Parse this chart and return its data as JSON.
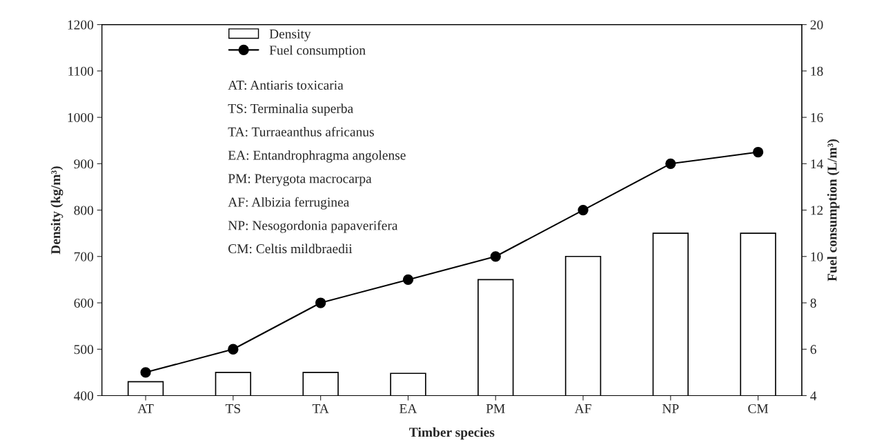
{
  "chart_data": {
    "type": "bar",
    "xlabel": "Timber species",
    "ylabel": "Density (kg/m³)",
    "y2label": "Fuel consumption (L/m³)",
    "categories": [
      "AT",
      "TS",
      "TA",
      "EA",
      "PM",
      "AF",
      "NP",
      "CM"
    ],
    "series": [
      {
        "name": "Density",
        "color": "#ffffff",
        "values": [
          430,
          450,
          450,
          448,
          650,
          700,
          750,
          750
        ]
      },
      {
        "name": "Fuel consumption",
        "type": "line",
        "axis": "y2",
        "color": "#000000",
        "marker": "circle",
        "values": [
          5,
          6,
          8,
          9,
          10,
          12,
          14,
          14.5
        ]
      }
    ],
    "ylim": [
      400,
      1200
    ],
    "yticks": [
      400,
      500,
      600,
      700,
      800,
      900,
      1000,
      1100,
      1200
    ],
    "y2lim": [
      4,
      20
    ],
    "y2ticks": [
      4,
      6,
      8,
      10,
      12,
      14,
      16,
      18,
      20
    ],
    "legend": "top left",
    "grid": false,
    "annotations": [
      "AT: Antiaris toxicaria",
      "TS: Terminalia superba",
      "TA: Turraeanthus africanus",
      "EA: Entandrophragma angolense",
      "PM: Pterygota macrocarpa",
      "AF: Albizia ferruginea",
      "NP: Nesogordonia papaverifera",
      "CM: Celtis mildbraedii"
    ]
  }
}
